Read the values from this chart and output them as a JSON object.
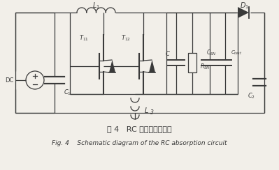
{
  "title_cn": "图 4   RC 吸收电路原理图",
  "title_en": "Fig. 4    Schematic diagram of the RC absorption circuit",
  "bg_color": "#f2efe9",
  "line_color": "#3a3a3a",
  "fig_width": 3.99,
  "fig_height": 2.44,
  "dpi": 100
}
